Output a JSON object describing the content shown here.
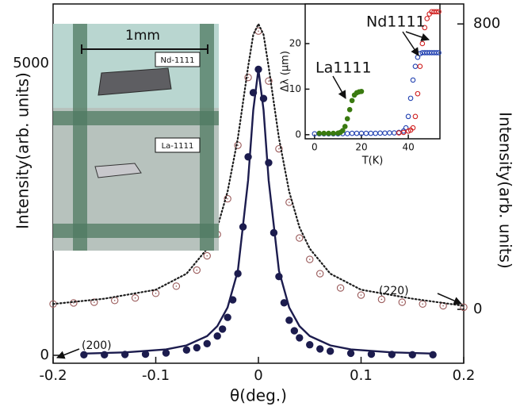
{
  "chart_data": [
    {
      "type": "scatter",
      "xlabel": "θ(deg.)",
      "ylabel": "Intensity(arb. units)",
      "y2label": "Intensity(arb. units)",
      "xlim": [
        -0.2,
        0.2
      ],
      "xticks": [
        -0.2,
        -0.1,
        0,
        0.1,
        0.2
      ],
      "ylim": [
        -136,
        6020
      ],
      "yticks": [
        0,
        5000
      ],
      "y2lim": [
        -151,
        856
      ],
      "y2ticks": [
        0,
        800
      ],
      "series": [
        {
          "name": "(200)",
          "color": "#1c1c4e",
          "marker": "filled",
          "line": "none",
          "axis": "y",
          "x": [
            -0.17,
            -0.15,
            -0.13,
            -0.11,
            -0.09,
            -0.07,
            -0.06,
            -0.05,
            -0.04,
            -0.035,
            -0.03,
            -0.025,
            -0.02,
            -0.015,
            -0.01,
            -0.005,
            0,
            0.005,
            0.01,
            0.015,
            0.02,
            0.025,
            0.03,
            0.035,
            0.04,
            0.05,
            0.06,
            0.07,
            0.09,
            0.11,
            0.13,
            0.15,
            0.17
          ],
          "values": [
            10,
            10,
            15,
            20,
            40,
            90,
            130,
            200,
            330,
            450,
            650,
            950,
            1400,
            2200,
            3400,
            4500,
            4900,
            4400,
            3300,
            2100,
            1350,
            900,
            600,
            420,
            300,
            180,
            110,
            70,
            35,
            20,
            15,
            10,
            10
          ]
        },
        {
          "name": "(220)",
          "color": "#9a5a5a",
          "marker": "open",
          "line": "none",
          "axis": "y2",
          "x": [
            -0.2,
            -0.18,
            -0.16,
            -0.14,
            -0.12,
            -0.1,
            -0.08,
            -0.06,
            -0.05,
            -0.04,
            -0.03,
            -0.02,
            -0.01,
            0,
            0.01,
            0.02,
            0.03,
            0.04,
            0.05,
            0.06,
            0.08,
            0.1,
            0.12,
            0.14,
            0.16,
            0.18,
            0.2
          ],
          "values": [
            15,
            18,
            20,
            25,
            32,
            45,
            65,
            110,
            150,
            210,
            310,
            460,
            650,
            780,
            640,
            450,
            300,
            200,
            140,
            100,
            60,
            40,
            28,
            20,
            15,
            10,
            6
          ]
        },
        {
          "color": "#1c1c4e",
          "marker": "none",
          "line": "solid",
          "axis": "y",
          "x": [
            -0.17,
            -0.13,
            -0.09,
            -0.07,
            -0.05,
            -0.04,
            -0.03,
            -0.02,
            -0.01,
            -0.005,
            0,
            0.005,
            0.01,
            0.02,
            0.03,
            0.04,
            0.05,
            0.07,
            0.09,
            0.13,
            0.17
          ],
          "values": [
            30,
            50,
            100,
            170,
            330,
            500,
            820,
            1450,
            3000,
            4200,
            4900,
            4200,
            3000,
            1450,
            820,
            500,
            330,
            170,
            100,
            50,
            30
          ]
        },
        {
          "color": "#1c1c1c",
          "marker": "none",
          "line": "dotted",
          "axis": "y2",
          "x": [
            -0.2,
            -0.15,
            -0.1,
            -0.07,
            -0.05,
            -0.04,
            -0.03,
            -0.02,
            -0.01,
            -0.005,
            0,
            0.005,
            0.01,
            0.02,
            0.03,
            0.04,
            0.05,
            0.07,
            0.1,
            0.15,
            0.2
          ],
          "values": [
            15,
            30,
            55,
            100,
            170,
            230,
            330,
            480,
            680,
            770,
            800,
            770,
            680,
            480,
            330,
            230,
            170,
            100,
            55,
            30,
            10
          ]
        }
      ]
    },
    {
      "type": "scatter",
      "xlabel": "T(K)",
      "ylabel": "Δλ (μm)",
      "xlim": [
        -4,
        53.5
      ],
      "xticks": [
        0,
        20,
        40
      ],
      "ylim": [
        -0.9,
        28.7
      ],
      "yticks": [
        0,
        10,
        20
      ],
      "series": [
        {
          "color": "#1f3fb0",
          "marker": "open",
          "line": "none",
          "x": [
            0,
            2,
            4,
            6,
            8,
            10,
            12,
            14,
            16,
            18,
            20,
            22,
            24,
            26,
            28,
            30,
            32,
            34,
            36,
            38,
            39,
            40,
            41,
            42,
            43,
            44,
            45,
            46,
            47,
            48,
            49,
            50,
            51,
            52,
            53
          ],
          "values": [
            0.2,
            0.2,
            0.2,
            0.2,
            0.2,
            0.2,
            0.25,
            0.25,
            0.3,
            0.3,
            0.3,
            0.3,
            0.3,
            0.3,
            0.35,
            0.35,
            0.4,
            0.4,
            0.5,
            0.8,
            1.5,
            4,
            8,
            12,
            15,
            17,
            17.8,
            18,
            18,
            18,
            18,
            18,
            18,
            18,
            18
          ]
        },
        {
          "name": "Nd1111",
          "color": "#d02020",
          "marker": "open",
          "line": "none",
          "x": [
            36,
            38,
            40,
            41,
            42,
            43,
            44,
            45,
            46,
            47,
            48,
            49,
            50,
            51,
            52,
            53
          ],
          "values": [
            0.4,
            0.5,
            0.8,
            1,
            1.5,
            4,
            9,
            15,
            20,
            23.5,
            25.5,
            26.5,
            27,
            27,
            27,
            27
          ]
        },
        {
          "name": "La1111",
          "color": "#3a7a10",
          "marker": "filled",
          "line": "none",
          "x": [
            2,
            4,
            6,
            8,
            10,
            11,
            12,
            13,
            14,
            15,
            16,
            17,
            18,
            19,
            20
          ],
          "values": [
            0.3,
            0.3,
            0.3,
            0.3,
            0.35,
            0.5,
            0.9,
            1.8,
            3.5,
            5.5,
            7.5,
            8.7,
            9.2,
            9.4,
            9.5
          ]
        }
      ]
    }
  ],
  "photo": {
    "scale": "1mm",
    "labels": [
      "Nd-1111",
      "La-1111"
    ]
  }
}
